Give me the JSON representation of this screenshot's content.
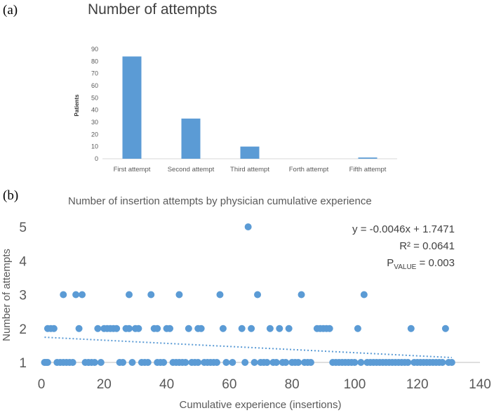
{
  "panels": {
    "a": "(a)",
    "b": "(b)"
  },
  "chart_data": [
    {
      "type": "bar",
      "title": "Number of attempts",
      "xlabel": "",
      "ylabel": "Patients",
      "ylim": [
        0,
        90
      ],
      "yticks": [
        0,
        10,
        20,
        30,
        40,
        50,
        60,
        70,
        80,
        90
      ],
      "categories": [
        "First attempt",
        "Second attempt",
        "Third attempt",
        "Forth attempt",
        "Fifth attempt"
      ],
      "values": [
        84,
        33,
        10,
        0,
        1
      ],
      "color": "#5b9bd5",
      "grid": false
    },
    {
      "type": "scatter",
      "title": "Number of insertion attempts by physician cumulative experience",
      "xlabel": "Cumulative experience (insertions)",
      "ylabel": "Number of attempts",
      "xlim": [
        0,
        140
      ],
      "ylim": [
        1,
        5
      ],
      "xticks": [
        0,
        20,
        40,
        60,
        80,
        100,
        120,
        140
      ],
      "yticks": [
        1,
        2,
        3,
        4,
        5
      ],
      "color": "#5b9bd5",
      "trendline": {
        "slope": -0.0046,
        "intercept": 1.7471,
        "x_from": 1,
        "x_to": 131
      },
      "annotation": {
        "equation": "y = -0.0046x + 1.7471",
        "r2": "R² = 0.0641",
        "p_prefix": "P",
        "p_sub": "VALUE",
        "p_rest": " = 0.003"
      },
      "points": [
        [
          1,
          1
        ],
        [
          1.5,
          1
        ],
        [
          2,
          1
        ],
        [
          2,
          2
        ],
        [
          3,
          2
        ],
        [
          4,
          2
        ],
        [
          5,
          1
        ],
        [
          6,
          1
        ],
        [
          7,
          1
        ],
        [
          7,
          3
        ],
        [
          8,
          1
        ],
        [
          9,
          1
        ],
        [
          10,
          1
        ],
        [
          11,
          3
        ],
        [
          12,
          2
        ],
        [
          13,
          3
        ],
        [
          14,
          1
        ],
        [
          15,
          1
        ],
        [
          16,
          1
        ],
        [
          17,
          1
        ],
        [
          18,
          2
        ],
        [
          19,
          1
        ],
        [
          20,
          2
        ],
        [
          21,
          2
        ],
        [
          22,
          2
        ],
        [
          23,
          2
        ],
        [
          24,
          2
        ],
        [
          25,
          1
        ],
        [
          26,
          1
        ],
        [
          27,
          2
        ],
        [
          28,
          2
        ],
        [
          28,
          3
        ],
        [
          29,
          1
        ],
        [
          30,
          2
        ],
        [
          31,
          2
        ],
        [
          32,
          1
        ],
        [
          33,
          1
        ],
        [
          34,
          1
        ],
        [
          35,
          3
        ],
        [
          36,
          2
        ],
        [
          37,
          2
        ],
        [
          37,
          1
        ],
        [
          38,
          1
        ],
        [
          39,
          1
        ],
        [
          40,
          2
        ],
        [
          41,
          2
        ],
        [
          42,
          1
        ],
        [
          43,
          1
        ],
        [
          44,
          1
        ],
        [
          44,
          3
        ],
        [
          45,
          1
        ],
        [
          46,
          1
        ],
        [
          47,
          2
        ],
        [
          48,
          1
        ],
        [
          49,
          1
        ],
        [
          50,
          1
        ],
        [
          50,
          2
        ],
        [
          51,
          2
        ],
        [
          52,
          1
        ],
        [
          53,
          1
        ],
        [
          54,
          1
        ],
        [
          55,
          1
        ],
        [
          56,
          1
        ],
        [
          57,
          3
        ],
        [
          58,
          2
        ],
        [
          59,
          1
        ],
        [
          61,
          1
        ],
        [
          64,
          2
        ],
        [
          65,
          1
        ],
        [
          66,
          5
        ],
        [
          67,
          2
        ],
        [
          68,
          1
        ],
        [
          69,
          3
        ],
        [
          70,
          1
        ],
        [
          71,
          1
        ],
        [
          72,
          1
        ],
        [
          73,
          2
        ],
        [
          74,
          1
        ],
        [
          75,
          1
        ],
        [
          76,
          2
        ],
        [
          77,
          1
        ],
        [
          78,
          1
        ],
        [
          79,
          2
        ],
        [
          80,
          1
        ],
        [
          81,
          1
        ],
        [
          82,
          1
        ],
        [
          83,
          3
        ],
        [
          84,
          1
        ],
        [
          85,
          1
        ],
        [
          86,
          1
        ],
        [
          88,
          2
        ],
        [
          89,
          2
        ],
        [
          90,
          2
        ],
        [
          91,
          2
        ],
        [
          92,
          2
        ],
        [
          93,
          1
        ],
        [
          94,
          1
        ],
        [
          95,
          1
        ],
        [
          96,
          1
        ],
        [
          97,
          1
        ],
        [
          98,
          1
        ],
        [
          99,
          1
        ],
        [
          100,
          1
        ],
        [
          101,
          2
        ],
        [
          102,
          1
        ],
        [
          103,
          3
        ],
        [
          104,
          1
        ],
        [
          105,
          1
        ],
        [
          106,
          1
        ],
        [
          107,
          1
        ],
        [
          108,
          1
        ],
        [
          109,
          1
        ],
        [
          110,
          1
        ],
        [
          111,
          1
        ],
        [
          112,
          1
        ],
        [
          113,
          1
        ],
        [
          114,
          1
        ],
        [
          115,
          1
        ],
        [
          116,
          1
        ],
        [
          117,
          1
        ],
        [
          118,
          2
        ],
        [
          119,
          1
        ],
        [
          120,
          1
        ],
        [
          121,
          1
        ],
        [
          122,
          1
        ],
        [
          123,
          1
        ],
        [
          124,
          1
        ],
        [
          125,
          1
        ],
        [
          126,
          1
        ],
        [
          127,
          1
        ],
        [
          128,
          1
        ],
        [
          129,
          2
        ],
        [
          130,
          1
        ],
        [
          131,
          1
        ]
      ]
    }
  ]
}
